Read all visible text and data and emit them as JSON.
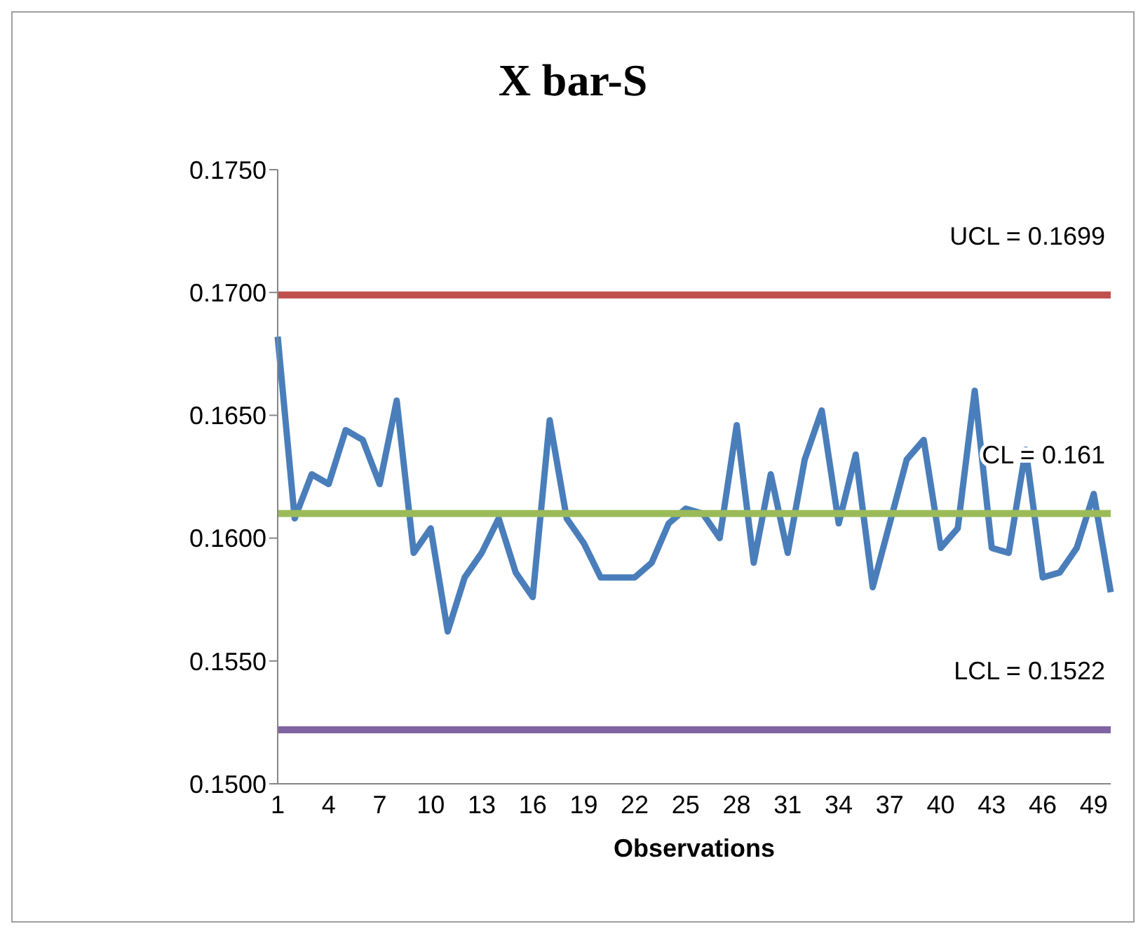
{
  "chart_data": {
    "type": "line",
    "title": "X bar-S",
    "xlabel": "Observations",
    "categories": [
      "1",
      null,
      null,
      "4",
      null,
      null,
      "7",
      null,
      null,
      "10",
      null,
      null,
      "13",
      null,
      null,
      "16",
      null,
      null,
      "19",
      null,
      null,
      "22",
      null,
      null,
      "25",
      null,
      null,
      "28",
      null,
      null,
      "31",
      null,
      null,
      "34",
      null,
      null,
      "37",
      null,
      null,
      "40",
      null,
      null,
      "43",
      null,
      null,
      "46",
      null,
      null,
      "49",
      null
    ],
    "series": [
      {
        "color": "#4a7ebb",
        "values": [
          0.1682,
          0.1608,
          0.1626,
          0.1622,
          0.1644,
          0.164,
          0.1622,
          0.1656,
          0.1594,
          0.1604,
          0.1562,
          0.1584,
          0.1594,
          0.1608,
          0.1586,
          0.1576,
          0.1648,
          0.1608,
          0.1598,
          0.1584,
          0.1584,
          0.1584,
          0.159,
          0.1606,
          0.1612,
          0.161,
          0.16,
          0.1646,
          0.159,
          0.1626,
          0.1594,
          0.1632,
          0.1652,
          0.1606,
          0.1634,
          0.158,
          0.1606,
          0.1632,
          0.164,
          0.1596,
          0.1604,
          0.166,
          0.1596,
          0.1594,
          0.1636,
          0.1584,
          0.1586,
          0.1596,
          0.1618,
          0.1578
        ]
      }
    ],
    "ylim": [
      0.15,
      0.175
    ],
    "yticks": [
      {
        "value": 0.15,
        "label": "0.1500"
      },
      {
        "value": 0.155,
        "label": "0.1550"
      },
      {
        "value": 0.16,
        "label": "0.1600"
      },
      {
        "value": 0.165,
        "label": "0.1650"
      },
      {
        "value": 0.17,
        "label": "0.1700"
      },
      {
        "value": 0.175,
        "label": "0.1750"
      }
    ],
    "ref_lines": [
      {
        "axis": "y",
        "value": 0.1699,
        "label": "UCL = 0.1699",
        "color": "#c0504d"
      },
      {
        "axis": "y",
        "value": 0.161,
        "label": "CL = 0.161",
        "color": "#9bbb59"
      },
      {
        "axis": "y",
        "value": 0.1522,
        "label": "LCL = 0.1522",
        "color": "#8064a2"
      }
    ],
    "grid": false,
    "legend": false,
    "marker": "none",
    "line_style": "solid"
  }
}
